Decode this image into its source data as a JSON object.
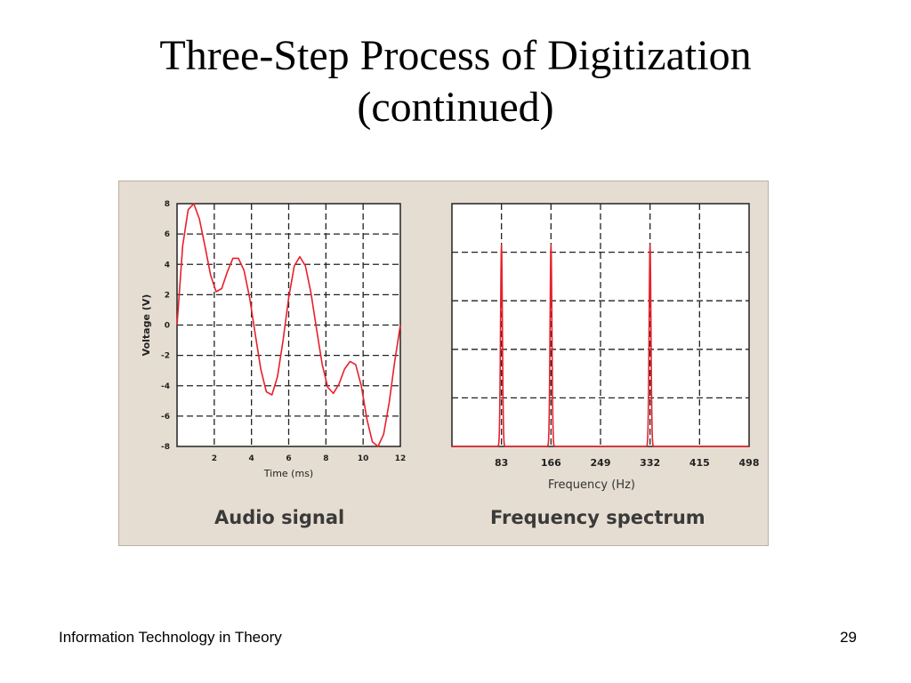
{
  "slide": {
    "title_line1": "Three-Step Process of Digitization",
    "title_line2": "(continued)",
    "footer_left": "Information Technology in Theory",
    "page_number": "29"
  },
  "colors": {
    "panel_bg": "#e6ddd2",
    "plot_bg": "#ffffff",
    "curve": "#e8202a",
    "grid": "#222222"
  },
  "chart_data": [
    {
      "type": "line",
      "caption": "Audio signal",
      "xlabel": "Time (ms)",
      "ylabel": "Voltage (V)",
      "xlim": [
        0,
        12
      ],
      "ylim": [
        -8,
        8
      ],
      "x_ticks": [
        2,
        4,
        6,
        8,
        10,
        12
      ],
      "x_tick_labels": [
        "2",
        "4",
        "6",
        "8",
        "10",
        "12"
      ],
      "y_ticks": [
        -8,
        -6,
        -4,
        -2,
        0,
        2,
        4,
        6,
        8
      ],
      "y_tick_labels": [
        "-8",
        "-6",
        "-4",
        "-2",
        "0",
        "2",
        "4",
        "6",
        "8"
      ],
      "grid": true,
      "series": [
        {
          "x": [
            0,
            0.3,
            0.6,
            0.9,
            1.2,
            1.5,
            1.8,
            2.1,
            2.4,
            2.7,
            3.0,
            3.3,
            3.6,
            3.9,
            4.2,
            4.5,
            4.8,
            5.1,
            5.4,
            5.7,
            6.0,
            6.3,
            6.6,
            6.9,
            7.2,
            7.5,
            7.8,
            8.1,
            8.4,
            8.7,
            9.0,
            9.3,
            9.6,
            9.9,
            10.2,
            10.5,
            10.8,
            11.1,
            11.4,
            11.7,
            12.0
          ],
          "values": [
            0,
            5.2,
            7.6,
            8.0,
            7.0,
            5.2,
            3.3,
            2.2,
            2.4,
            3.5,
            4.4,
            4.4,
            3.6,
            1.8,
            -0.6,
            -2.9,
            -4.4,
            -4.6,
            -3.4,
            -1.0,
            1.8,
            3.9,
            4.5,
            3.9,
            2.1,
            -0.3,
            -2.6,
            -4.1,
            -4.5,
            -3.9,
            -2.9,
            -2.4,
            -2.6,
            -4.0,
            -6.2,
            -7.7,
            -8.0,
            -7.2,
            -5.1,
            -2.4,
            0
          ]
        }
      ]
    },
    {
      "type": "line",
      "caption": "Frequency spectrum",
      "xlabel": "Frequency (Hz)",
      "ylabel": "",
      "xlim": [
        0,
        498
      ],
      "ylim": [
        0,
        1
      ],
      "x_ticks": [
        83,
        166,
        249,
        332,
        415,
        498
      ],
      "x_tick_labels": [
        "83",
        "166",
        "249",
        "332",
        "415",
        "498"
      ],
      "y_ticks": [
        0.2,
        0.4,
        0.6,
        0.8
      ],
      "y_tick_labels": [],
      "grid": true,
      "peaks": [
        {
          "frequency": 83,
          "amplitude": 0.83
        },
        {
          "frequency": 166,
          "amplitude": 0.83
        },
        {
          "frequency": 332,
          "amplitude": 0.83
        }
      ]
    }
  ]
}
